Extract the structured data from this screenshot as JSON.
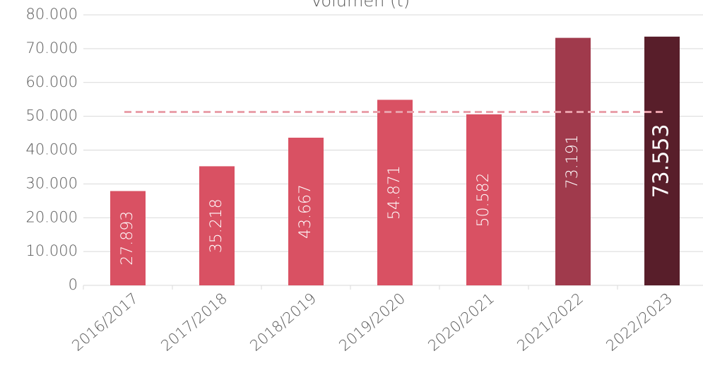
{
  "chart_data": {
    "type": "bar",
    "title": "Volumen (t)",
    "categories": [
      "2016/2017",
      "2017/2018",
      "2018/2019",
      "2019/2020",
      "2020/2021",
      "2021/2022",
      "2022/2023"
    ],
    "values": [
      27893,
      35218,
      43667,
      54871,
      50582,
      73191,
      73553
    ],
    "value_labels": [
      "27.893",
      "35.218",
      "43.667",
      "54.871",
      "50.582",
      "73.191",
      "73.553"
    ],
    "colors": [
      "#d95163",
      "#d95163",
      "#d95163",
      "#d95163",
      "#d95163",
      "#a03a4c",
      "#581e2a"
    ],
    "reference_line": 51282,
    "reference_color": "#e9a0aa",
    "ylim": [
      0,
      80000
    ],
    "yticks": [
      0,
      {
        "value": 10000,
        "label": "10.000"
      },
      {
        "value": 20000,
        "label": "20.000"
      },
      {
        "value": 30000,
        "label": "30.000"
      },
      {
        "value": 40000,
        "label": "40.000"
      },
      {
        "value": 50000,
        "label": "50.000"
      },
      {
        "value": 60000,
        "label": "60.000"
      },
      {
        "value": 70000,
        "label": "70.000"
      },
      {
        "value": 80000,
        "label": "80.000"
      }
    ],
    "grid": true
  }
}
